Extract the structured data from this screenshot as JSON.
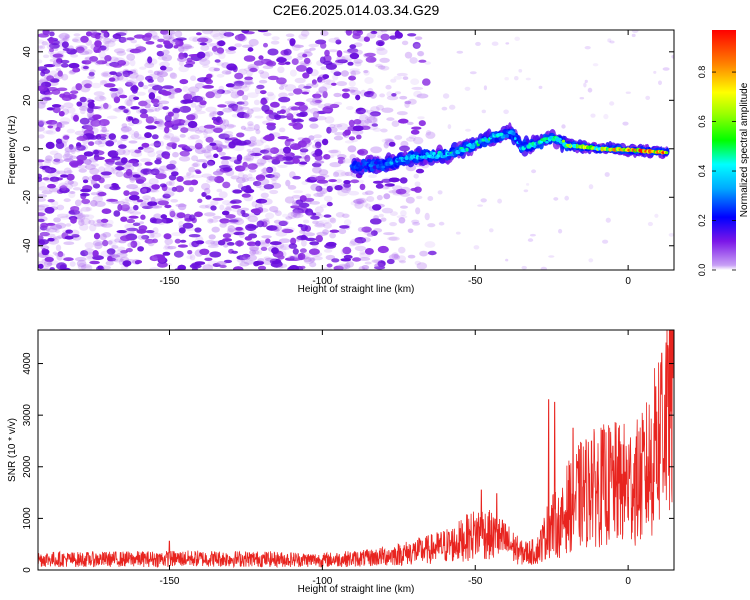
{
  "title": "C2E6.2025.014.03.34.G29",
  "chart_data": [
    {
      "type": "heatmap",
      "xlabel": "Height of straight line (km)",
      "ylabel": "Frequency (Hz)",
      "xlim": [
        -193,
        15
      ],
      "ylim": [
        -50,
        49
      ],
      "x_ticks": [
        -150,
        -100,
        -50,
        0
      ],
      "y_ticks": [
        -40,
        -20,
        0,
        20,
        40
      ],
      "grid": false,
      "colorbar": {
        "label": "Normalized spectral amplitude",
        "range": [
          0.0,
          0.97
        ],
        "ticks": [
          0.0,
          0.2,
          0.4,
          0.6,
          0.8
        ],
        "colormap": "rainbow (purple → blue → cyan → green → yellow → orange → red)"
      },
      "noise_region": {
        "x_range": [
          -193,
          -70
        ],
        "frequency_range": [
          -50,
          49
        ],
        "amplitude": 0.05
      },
      "ridge": {
        "description": "strong signal ridge (frequency vs height)",
        "points": [
          {
            "x": -90,
            "freq": -7.5,
            "amplitude": 0.25
          },
          {
            "x": -80,
            "freq": -6.5,
            "amplitude": 0.3
          },
          {
            "x": -70,
            "freq": -3.0,
            "amplitude": 0.4
          },
          {
            "x": -60,
            "freq": -2.5,
            "amplitude": 0.45
          },
          {
            "x": -50,
            "freq": 1.5,
            "amplitude": 0.5
          },
          {
            "x": -45,
            "freq": 4.5,
            "amplitude": 0.45
          },
          {
            "x": -38,
            "freq": 6.5,
            "amplitude": 0.35
          },
          {
            "x": -35,
            "freq": 1.0,
            "amplitude": 0.4
          },
          {
            "x": -30,
            "freq": 2.0,
            "amplitude": 0.45
          },
          {
            "x": -25,
            "freq": 4.5,
            "amplitude": 0.5
          },
          {
            "x": -20,
            "freq": 1.5,
            "amplitude": 0.6
          },
          {
            "x": -10,
            "freq": 0.0,
            "amplitude": 0.7
          },
          {
            "x": 0,
            "freq": -0.5,
            "amplitude": 0.85
          },
          {
            "x": 13,
            "freq": -1.5,
            "amplitude": 0.9
          }
        ]
      }
    },
    {
      "type": "line",
      "xlabel": "Height of straight line (km)",
      "ylabel": "SNR (10 * v/v)",
      "xlim": [
        -193,
        15
      ],
      "ylim": [
        0,
        4650
      ],
      "x_ticks": [
        -150,
        -100,
        -50,
        0
      ],
      "y_ticks": [
        0,
        1000,
        2000,
        3000,
        4000
      ],
      "grid": false,
      "color": "#e8241f",
      "series": [
        {
          "points": [
            [
              -193,
              230
            ],
            [
              -180,
              220
            ],
            [
              -160,
              230
            ],
            [
              -140,
              240
            ],
            [
              -120,
              230
            ],
            [
              -100,
              210
            ],
            [
              -85,
              250
            ],
            [
              -75,
              330
            ],
            [
              -65,
              430
            ],
            [
              -57,
              550
            ],
            [
              -52,
              700
            ],
            [
              -48,
              800
            ],
            [
              -45,
              720
            ],
            [
              -40,
              600
            ],
            [
              -35,
              360
            ],
            [
              -30,
              380
            ],
            [
              -28,
              600
            ],
            [
              -25,
              1000
            ],
            [
              -22,
              900
            ],
            [
              -20,
              1300
            ],
            [
              -15,
              1600
            ],
            [
              -10,
              1750
            ],
            [
              -5,
              1800
            ],
            [
              0,
              1800
            ],
            [
              4,
              1850
            ],
            [
              8,
              2300
            ],
            [
              10,
              2800
            ],
            [
              12,
              3200
            ],
            [
              14,
              3700
            ]
          ],
          "peaks": [
            [
              -150,
              560
            ],
            [
              -48,
              1550
            ],
            [
              -43,
              1480
            ],
            [
              -26,
              3300
            ],
            [
              -24,
              3250
            ],
            [
              -18,
              2750
            ],
            [
              -12,
              2500
            ],
            [
              -5,
              2400
            ],
            [
              9,
              3550
            ],
            [
              11,
              4200
            ],
            [
              13,
              4350
            ]
          ]
        }
      ]
    }
  ],
  "colors": {
    "series_line": "#e8241f",
    "axis": "#000000",
    "noise_purple": "#7a1ee0"
  }
}
